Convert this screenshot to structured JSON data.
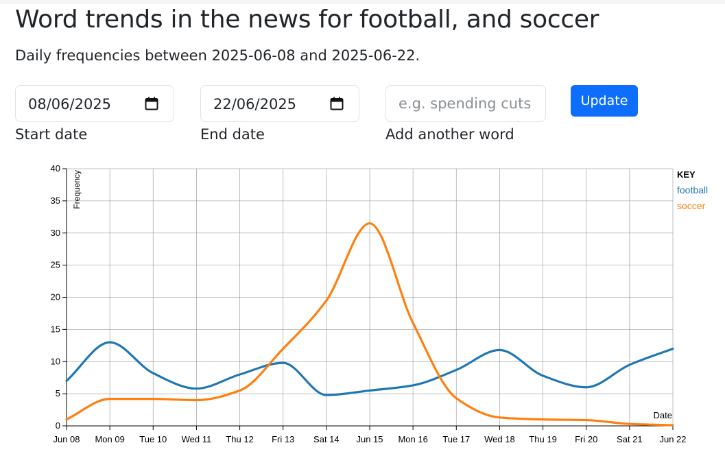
{
  "page": {
    "title": "Word trends in the news for football, and soccer",
    "subtitle": "Daily frequencies between 2025-06-08 and 2025-06-22."
  },
  "form": {
    "start_date": {
      "value": "08/06/2025",
      "label": "Start date",
      "icon": "calendar-icon"
    },
    "end_date": {
      "value": "22/06/2025",
      "label": "End date",
      "icon": "calendar-icon"
    },
    "add_word": {
      "placeholder": "e.g. spending cuts",
      "label": "Add another word"
    },
    "update_label": "Update"
  },
  "chart_data": {
    "type": "line",
    "ylabel": "Frequency",
    "xlabel": "Date",
    "ylim": [
      0,
      40
    ],
    "yticks": [
      0,
      5,
      10,
      15,
      20,
      25,
      30,
      35,
      40
    ],
    "categories": [
      "Jun 08",
      "Mon 09",
      "Tue 10",
      "Wed 11",
      "Thu 12",
      "Fri 13",
      "Sat 14",
      "Jun 15",
      "Mon 16",
      "Tue 17",
      "Wed 18",
      "Thu 19",
      "Fri 20",
      "Sat 21",
      "Jun 22"
    ],
    "grid": true,
    "legend": {
      "title": "KEY",
      "placement": "top-right"
    },
    "series": [
      {
        "name": "football",
        "color": "#1f77b4",
        "values": [
          7,
          13,
          8.2,
          5.8,
          8,
          9.8,
          4.8,
          5.5,
          6.3,
          8.7,
          11.8,
          7.8,
          6,
          9.5,
          12
        ]
      },
      {
        "name": "soccer",
        "color": "#ff7f0e",
        "values": [
          1,
          4.2,
          4.2,
          4,
          5.5,
          12,
          19.5,
          31.5,
          16,
          4.3,
          1.3,
          1,
          0.9,
          0.3,
          0.1
        ]
      }
    ]
  }
}
